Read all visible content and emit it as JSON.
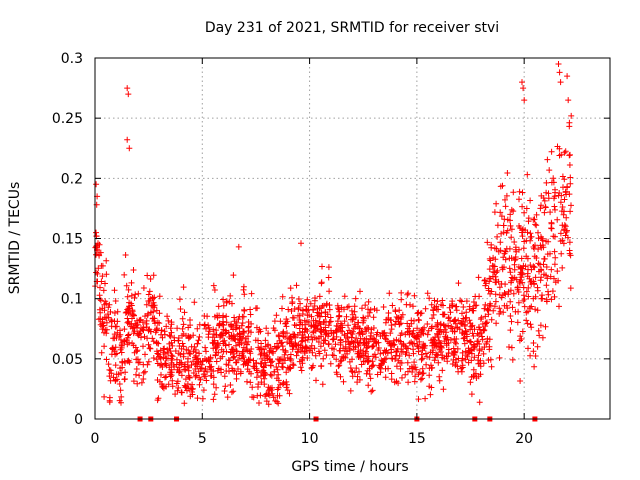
{
  "chart_data": {
    "type": "scatter",
    "title": "Day 231 of 2021, SRMTID for receiver stvi",
    "xlabel": "GPS time / hours",
    "ylabel": "SRMTID / TECUs",
    "xlim": [
      0,
      24
    ],
    "ylim": [
      0,
      0.3
    ],
    "x_ticks": [
      0,
      5,
      10,
      15,
      20
    ],
    "y_ticks": [
      0,
      0.05,
      0.1,
      0.15,
      0.2,
      0.25,
      0.3
    ],
    "x_tick_labels": [
      "0",
      "5",
      "10",
      "15",
      "20"
    ],
    "y_tick_labels": [
      "0",
      "0.05",
      "0.1",
      "0.15",
      "0.2",
      "0.25",
      "0.3"
    ],
    "grid": true,
    "marker": "plus",
    "series_color": "#ff0000",
    "envelope": {
      "description": "approximate central trend of the SRMTID scatter (hours, TECU)",
      "x": [
        0.0,
        0.3,
        0.8,
        1.2,
        1.6,
        2.0,
        2.6,
        3.0,
        3.5,
        4.0,
        5.0,
        6.0,
        7.0,
        8.0,
        9.0,
        10.0,
        11.0,
        12.0,
        13.0,
        14.0,
        15.0,
        16.0,
        17.0,
        17.5,
        18.0,
        18.5,
        19.0,
        19.5,
        20.0,
        20.5,
        21.0,
        21.5,
        22.0,
        22.2
      ],
      "y": [
        0.16,
        0.09,
        0.06,
        0.045,
        0.09,
        0.06,
        0.095,
        0.05,
        0.045,
        0.05,
        0.05,
        0.065,
        0.065,
        0.04,
        0.06,
        0.075,
        0.07,
        0.065,
        0.06,
        0.065,
        0.06,
        0.065,
        0.075,
        0.065,
        0.065,
        0.11,
        0.13,
        0.13,
        0.13,
        0.12,
        0.14,
        0.16,
        0.17,
        0.19
      ]
    },
    "spread": {
      "x": [
        0.0,
        1.5,
        3.0,
        9.0,
        17.5,
        18.5,
        20.0,
        22.2
      ],
      "sd": [
        0.025,
        0.022,
        0.02,
        0.018,
        0.018,
        0.028,
        0.035,
        0.04
      ]
    },
    "outliers": {
      "x": [
        1.5,
        1.55,
        1.5,
        1.6,
        0.05,
        0.1,
        0.08,
        19.9,
        19.95,
        20.0,
        21.6,
        21.65,
        21.7,
        22.0,
        22.05,
        9.6,
        6.7
      ],
      "y": [
        0.275,
        0.27,
        0.232,
        0.225,
        0.195,
        0.185,
        0.178,
        0.28,
        0.275,
        0.265,
        0.295,
        0.288,
        0.28,
        0.285,
        0.265,
        0.146,
        0.143
      ]
    },
    "zero_markers_x": [
      2.1,
      2.6,
      3.8,
      10.3,
      15.0,
      17.7,
      18.4,
      20.5
    ],
    "point_count": 2200,
    "random_seed": 231
  }
}
